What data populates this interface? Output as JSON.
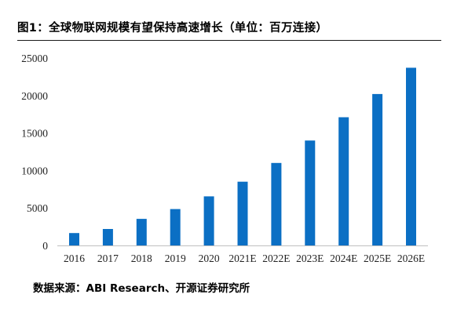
{
  "figure_title": "图1：全球物联网规模有望保持高速增长（单位：百万连接）",
  "source": {
    "label": "数据来源：",
    "value": "ABI Research、开源证券研究所"
  },
  "colors": {
    "bar": "#0B6FC4",
    "axis": "#BFBFBF"
  },
  "chart_data": {
    "type": "bar",
    "categories": [
      "2016",
      "2017",
      "2018",
      "2019",
      "2020",
      "2021E",
      "2022E",
      "2023E",
      "2024E",
      "2025E",
      "2026E"
    ],
    "values": [
      1650,
      2200,
      3550,
      4850,
      6550,
      8500,
      11000,
      14000,
      17100,
      20200,
      23700
    ],
    "ylim": [
      0,
      25000
    ],
    "yticks": [
      0,
      5000,
      10000,
      15000,
      20000,
      25000
    ],
    "grid": false,
    "legend": "none"
  }
}
